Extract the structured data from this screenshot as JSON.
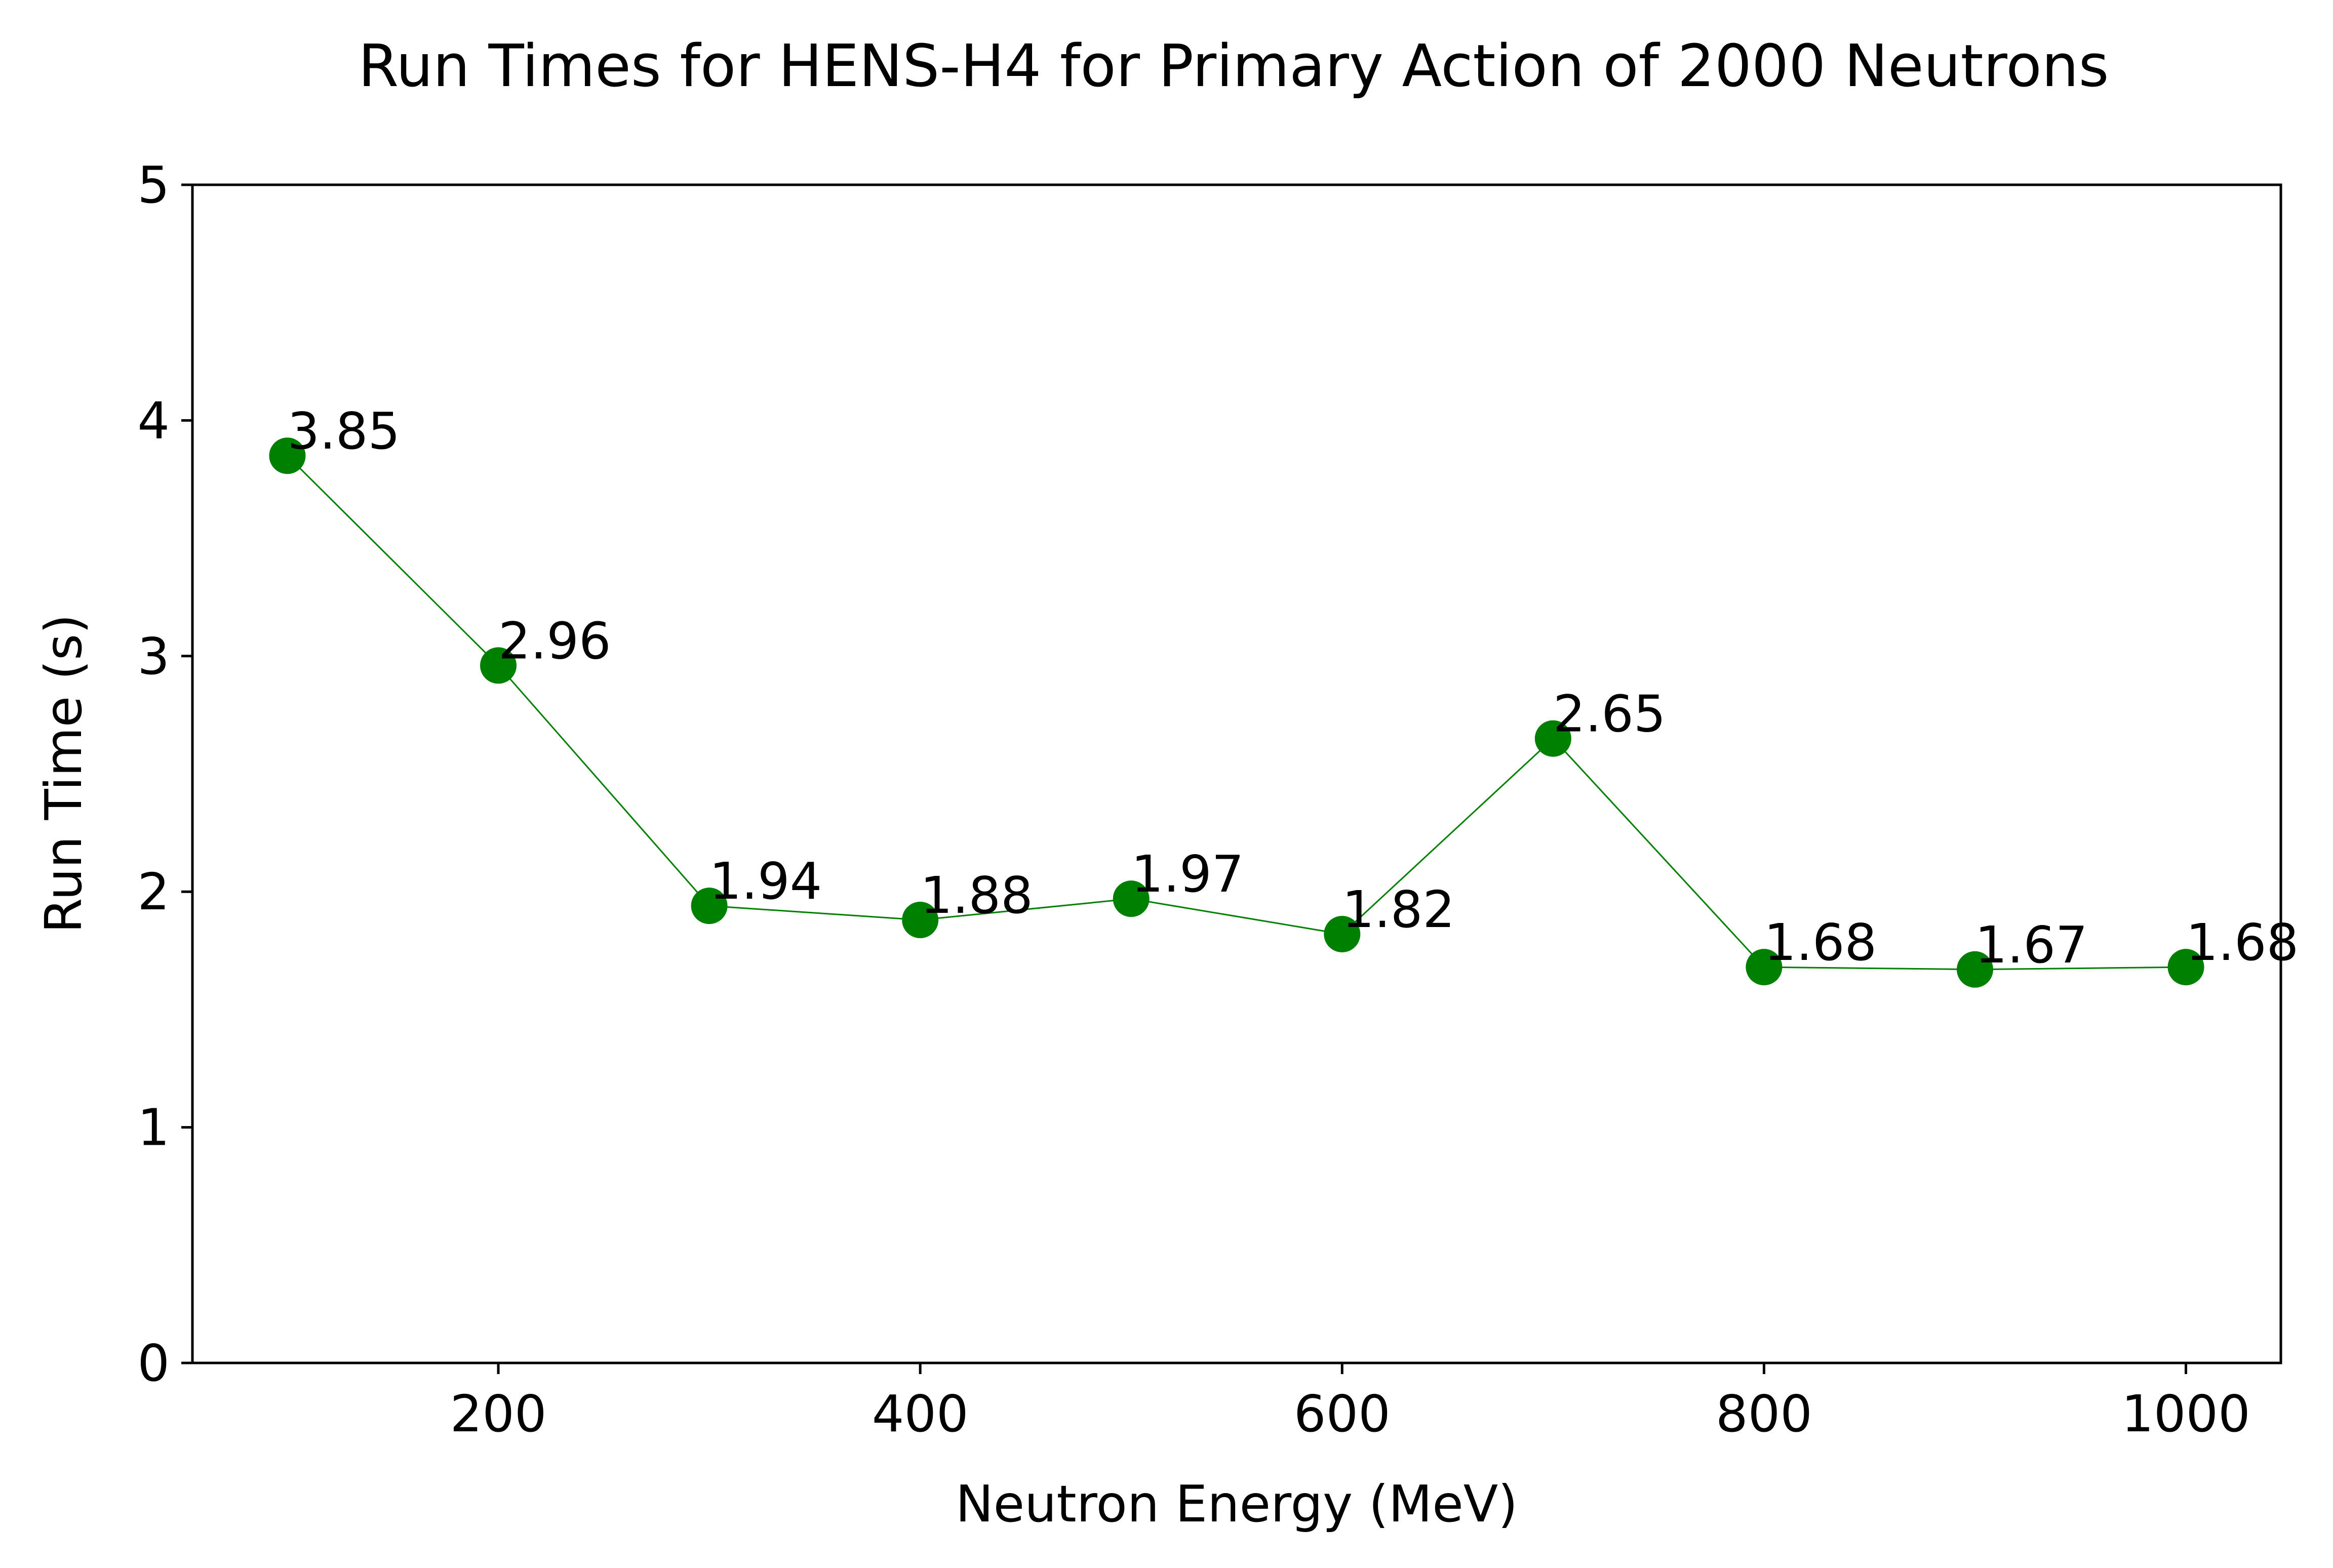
{
  "chart_data": {
    "type": "line",
    "title": "Run Times for HENS-H4 for Primary Action of 2000 Neutrons",
    "xlabel": "Neutron Energy (MeV)",
    "ylabel": "Run Time (s)",
    "xlim": [
      55,
      1045
    ],
    "ylim": [
      0,
      5
    ],
    "x_ticks": [
      200,
      400,
      600,
      800,
      1000
    ],
    "y_ticks": [
      0,
      1,
      2,
      3,
      4,
      5
    ],
    "grid": false,
    "legend": false,
    "color": "#008000",
    "series": [
      {
        "x": [
          100,
          200,
          300,
          400,
          500,
          600,
          700,
          800,
          900,
          1000
        ],
        "y": [
          3.85,
          2.96,
          1.94,
          1.88,
          1.97,
          1.82,
          2.65,
          1.68,
          1.67,
          1.68
        ],
        "labels": [
          "3.85",
          "2.96",
          "1.94",
          "1.88",
          "1.97",
          "1.82",
          "2.65",
          "1.68",
          "1.67",
          "1.68"
        ]
      }
    ]
  }
}
